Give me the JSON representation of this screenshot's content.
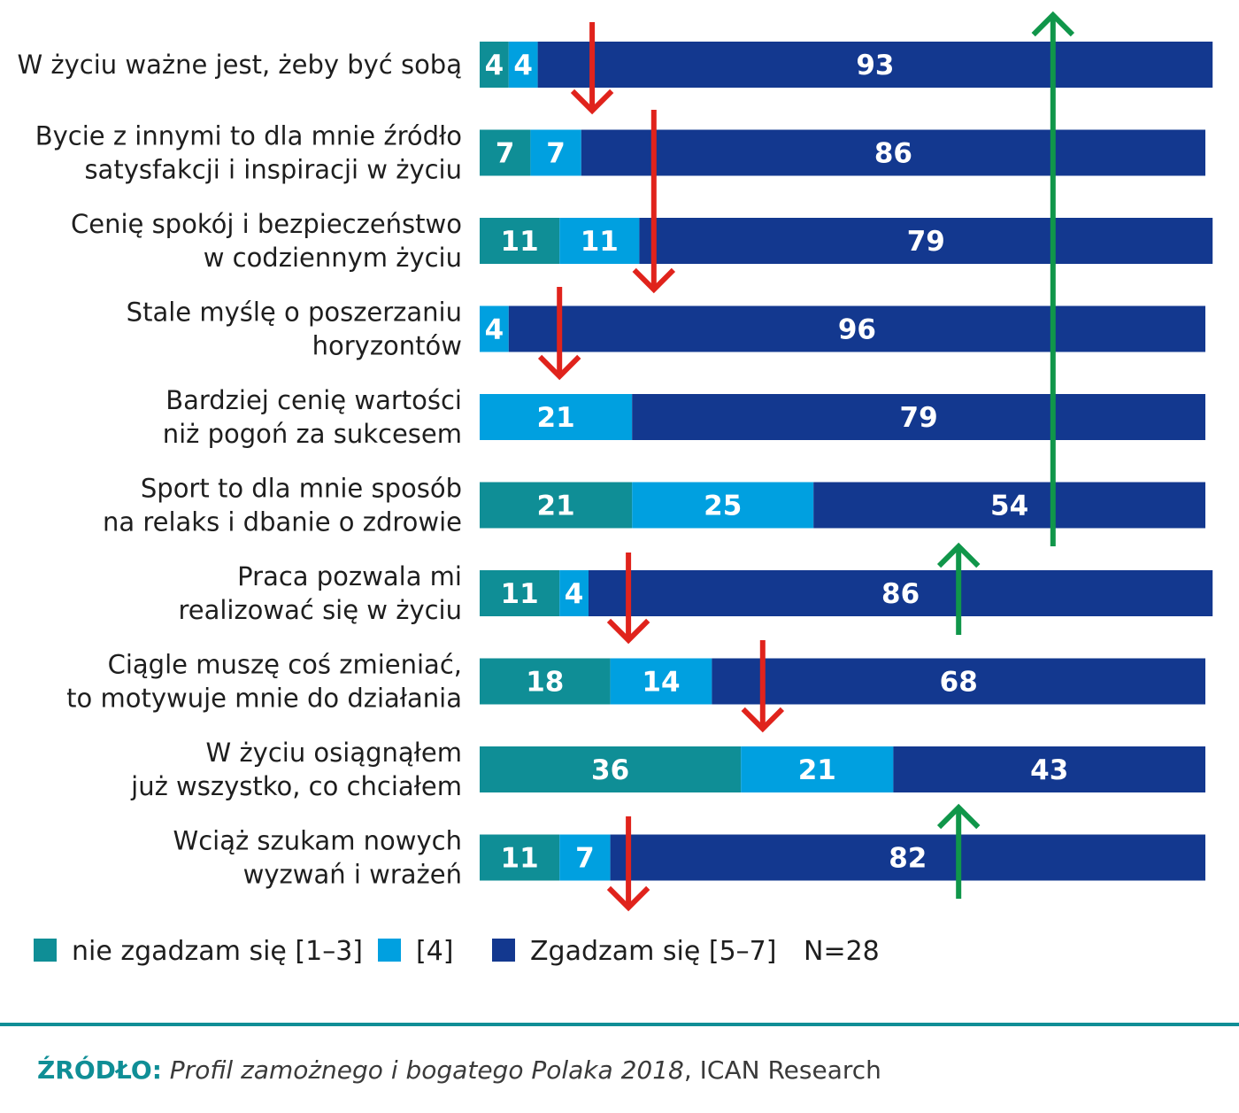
{
  "chart_data": {
    "type": "bar",
    "orientation": "horizontal",
    "stacked": true,
    "normalized_percent": true,
    "categories": [
      [
        "W życiu ważne jest, żeby być sobą"
      ],
      [
        "Bycie z innymi to dla mnie źródło",
        "satysfakcji i inspiracji w życiu"
      ],
      [
        "Cenię spokój i bezpieczeństwo",
        "w codziennym życiu"
      ],
      [
        "Stale myślę o poszerzaniu",
        "horyzontów"
      ],
      [
        "Bardziej cenię wartości",
        "niż pogoń za sukcesem"
      ],
      [
        "Sport to dla mnie sposób",
        "na relaks i dbanie o zdrowie"
      ],
      [
        "Praca pozwala mi",
        "realizować się w życiu"
      ],
      [
        "Ciągle muszę coś zmieniać,",
        "to motywuje mnie do działania"
      ],
      [
        "W życiu osiągnąłem",
        "już wszystko, co chciałem"
      ],
      [
        "Wciąż szukam nowych",
        "wyzwań i wrażeń"
      ]
    ],
    "series": [
      {
        "name": "nie zgadzam się [1–3]",
        "color": "#0f8e96",
        "values": [
          4,
          7,
          11,
          0,
          0,
          21,
          11,
          18,
          36,
          11
        ]
      },
      {
        "name": "[4]",
        "color": "#00a0e0",
        "values": [
          4,
          7,
          11,
          4,
          21,
          25,
          4,
          14,
          21,
          7
        ]
      },
      {
        "name": "Zgadzam się [5–7]",
        "color": "#13388f",
        "values": [
          93,
          86,
          79,
          96,
          79,
          54,
          86,
          68,
          43,
          82
        ]
      }
    ],
    "arrows": [
      {
        "direction": "down",
        "row": 0,
        "position_percent": 15.5,
        "color": "#e0231c"
      },
      {
        "direction": "down",
        "row": 1,
        "position_percent": 24,
        "color": "#e0231c"
      },
      {
        "direction": "down",
        "row": 3,
        "position_percent": 11,
        "color": "#e0231c"
      },
      {
        "direction": "up",
        "row": 0,
        "position_percent": 79,
        "color": "#10964a"
      },
      {
        "direction": "up",
        "row": 6,
        "position_percent": 66,
        "color": "#10964a"
      },
      {
        "direction": "down",
        "row": 6,
        "position_percent": 20.5,
        "color": "#e0231c"
      },
      {
        "direction": "down",
        "row": 7,
        "position_percent": 39,
        "color": "#e0231c"
      },
      {
        "direction": "up",
        "row": 9,
        "position_percent": 66,
        "color": "#10964a"
      },
      {
        "direction": "down",
        "row": 9,
        "position_percent": 20.5,
        "color": "#e0231c"
      }
    ],
    "note": "N=28",
    "legend_position": "bottom"
  },
  "source": {
    "prefix": "ŹRÓDŁO:",
    "title": "Profil zamożnego i bogatego Polaka 2018",
    "rest": ", ICAN Research"
  },
  "colors": {
    "text": "#1e1e1e",
    "divider": "#0f8e96",
    "source_prefix": "#0f8e96",
    "source_text": "#3a3a3a"
  }
}
